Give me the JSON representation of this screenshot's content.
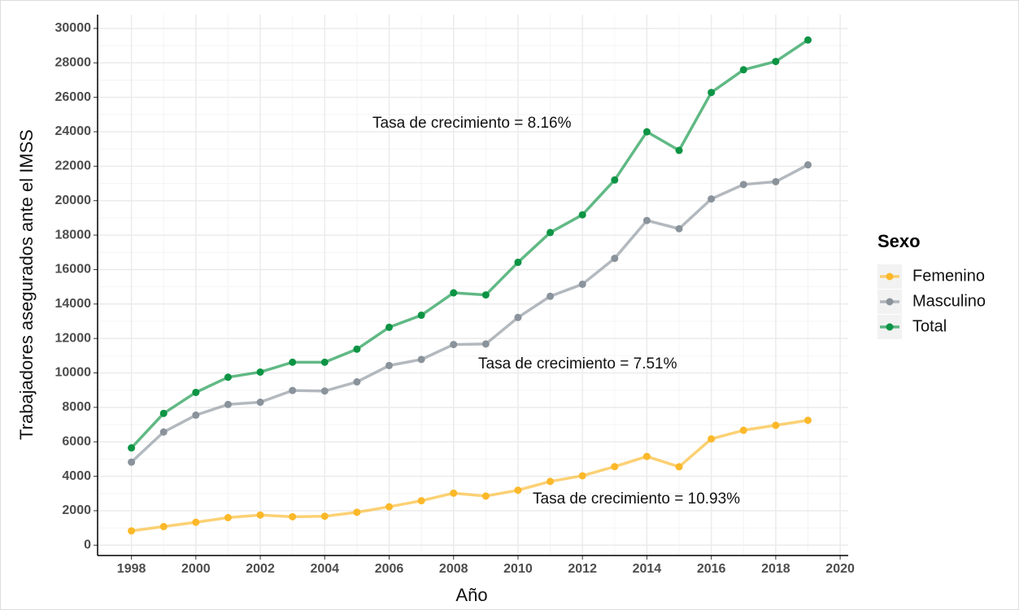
{
  "chart_data": {
    "type": "line",
    "x_label": "Año",
    "y_label": "Trabajadores asegurados ante el IMSS",
    "legend_title": "Sexo",
    "legend": "right",
    "x": [
      1998,
      1999,
      2000,
      2001,
      2002,
      2003,
      2004,
      2005,
      2006,
      2007,
      2008,
      2009,
      2010,
      2011,
      2012,
      2013,
      2014,
      2015,
      2016,
      2017,
      2018,
      2019
    ],
    "series": [
      {
        "name": "Femenino",
        "color": "#fbb829",
        "values": [
          830,
          1080,
          1330,
          1600,
          1750,
          1650,
          1680,
          1910,
          2230,
          2580,
          3020,
          2850,
          3190,
          3700,
          4030,
          4560,
          5150,
          4550,
          6170,
          6670,
          6960,
          7250
        ]
      },
      {
        "name": "Masculino",
        "color": "#8a939b",
        "values": [
          4820,
          6570,
          7550,
          8170,
          8300,
          8980,
          8950,
          9480,
          10430,
          10780,
          11650,
          11680,
          13220,
          14450,
          15150,
          16650,
          18850,
          18370,
          20100,
          20940,
          21100,
          22080
        ]
      },
      {
        "name": "Total",
        "color": "#0c9444",
        "values": [
          5650,
          7650,
          8870,
          9750,
          10050,
          10620,
          10620,
          11380,
          12650,
          13350,
          14650,
          14530,
          16420,
          18150,
          19180,
          21200,
          24000,
          22920,
          26280,
          27600,
          28080,
          29330
        ]
      }
    ],
    "annotations": [
      "Tasa de crecimiento = 10.93%",
      "Tasa de crecimiento = 7.51%",
      "Tasa de crecimiento = 8.16%"
    ],
    "xlim": [
      1996.95,
      2020.25
    ],
    "xticks": [
      1998,
      2000,
      2002,
      2004,
      2006,
      2008,
      2010,
      2012,
      2014,
      2016,
      2018,
      2020
    ],
    "ylim": [
      -600,
      30800
    ],
    "yticks": [
      0,
      2000,
      4000,
      6000,
      8000,
      10000,
      12000,
      14000,
      16000,
      18000,
      20000,
      22000,
      24000,
      26000,
      28000,
      30000
    ],
    "grid": true
  }
}
